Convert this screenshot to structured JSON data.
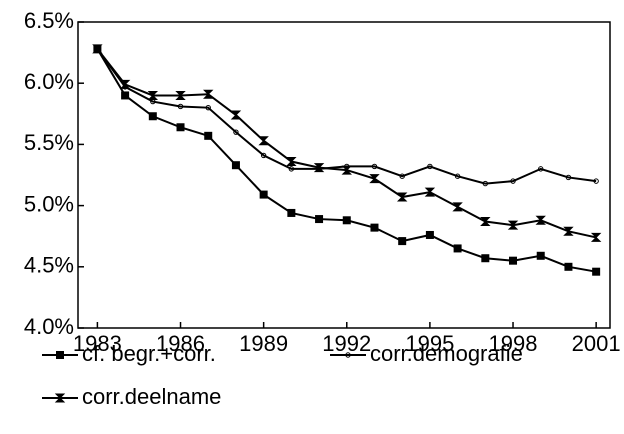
{
  "chart_data": {
    "type": "line",
    "x": [
      1983,
      1984,
      1985,
      1986,
      1987,
      1988,
      1989,
      1990,
      1991,
      1992,
      1993,
      1994,
      1995,
      1996,
      1997,
      1998,
      1999,
      2000,
      2001
    ],
    "xlim": [
      1982.3,
      2001.5
    ],
    "xticks": [
      1983,
      1986,
      1989,
      1992,
      1995,
      1998,
      2001
    ],
    "ylim": [
      4,
      6.5
    ],
    "yticks": [
      {
        "value": 4,
        "label": "4.0%"
      },
      {
        "value": 4.5,
        "label": "4.5%"
      },
      {
        "value": 5,
        "label": "5.0%"
      },
      {
        "value": 5.5,
        "label": "5.5%"
      },
      {
        "value": 6,
        "label": "6.0%"
      },
      {
        "value": 6.5,
        "label": "6.5%"
      }
    ],
    "grid": false,
    "legend": "bottom",
    "series": [
      {
        "name": "cf. begr.+corr.",
        "color": "#000000",
        "marker": "square",
        "values": [
          6.28,
          5.9,
          5.73,
          5.64,
          5.57,
          5.33,
          5.09,
          4.94,
          4.89,
          4.88,
          4.82,
          4.71,
          4.76,
          4.65,
          4.57,
          4.55,
          4.59,
          4.5,
          4.46
        ]
      },
      {
        "name": "corr.demografie",
        "color": "#000000",
        "marker": "circle",
        "values": [
          6.28,
          5.97,
          5.85,
          5.81,
          5.8,
          5.6,
          5.41,
          5.3,
          5.3,
          5.32,
          5.32,
          5.24,
          5.32,
          5.24,
          5.18,
          5.2,
          5.3,
          5.23,
          5.2
        ]
      },
      {
        "name": "corr.deelname",
        "color": "#000000",
        "marker": "bowtie",
        "values": [
          6.28,
          5.99,
          5.9,
          5.9,
          5.91,
          5.74,
          5.53,
          5.36,
          5.31,
          5.29,
          5.22,
          5.07,
          5.11,
          4.99,
          4.87,
          4.84,
          4.88,
          4.79,
          4.74
        ]
      }
    ]
  }
}
